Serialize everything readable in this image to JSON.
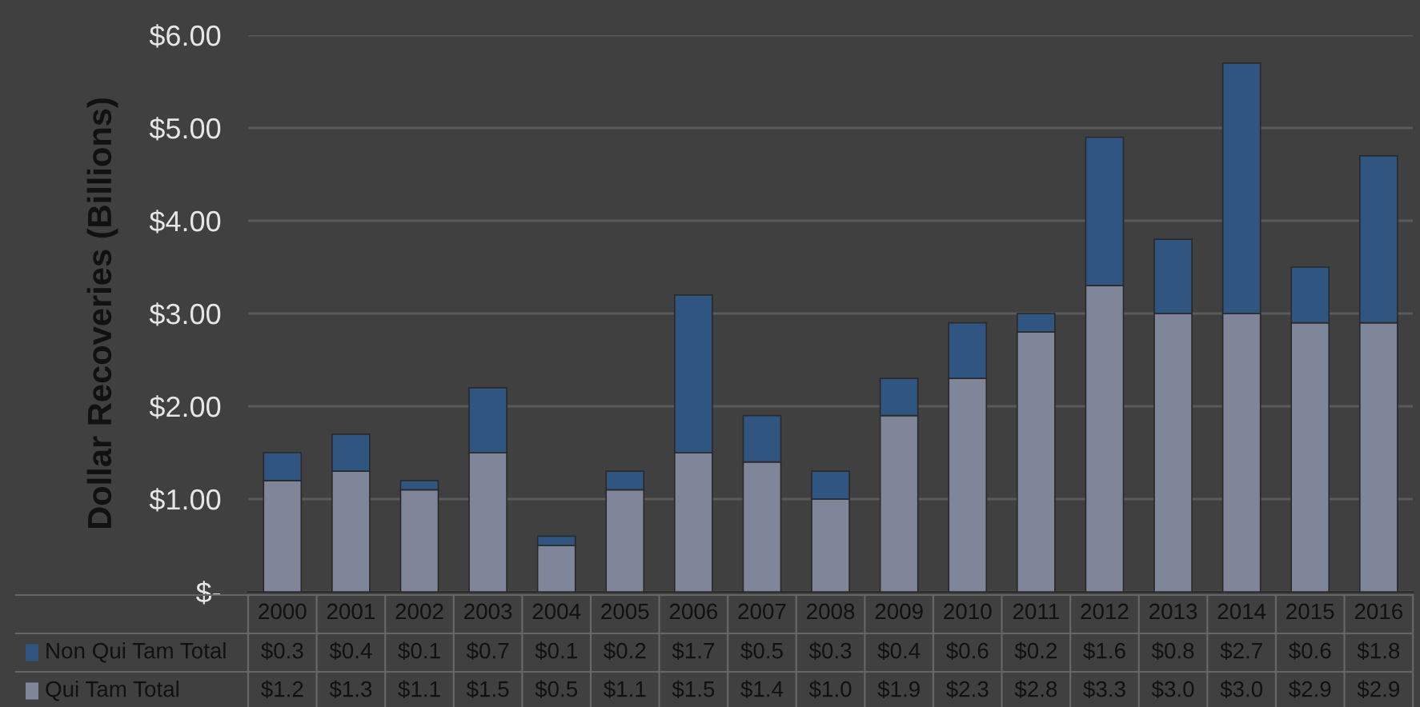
{
  "chart_data": {
    "type": "bar",
    "stacked": true,
    "ylabel": "Dollar Recoveries (Billions)",
    "categories": [
      "2000",
      "2001",
      "2002",
      "2003",
      "2004",
      "2005",
      "2006",
      "2007",
      "2008",
      "2009",
      "2010",
      "2011",
      "2012",
      "2013",
      "2014",
      "2015",
      "2016"
    ],
    "series": [
      {
        "name": "Qui Tam Total",
        "color": "#7f8699",
        "values": [
          1.2,
          1.3,
          1.1,
          1.5,
          0.5,
          1.1,
          1.5,
          1.4,
          1.0,
          1.9,
          2.3,
          2.8,
          3.3,
          3.0,
          3.0,
          2.9,
          2.9
        ],
        "value_labels": [
          "$1.2",
          "$1.3",
          "$1.1",
          "$1.5",
          "$0.5",
          "$1.1",
          "$1.5",
          "$1.4",
          "$1.0",
          "$1.9",
          "$2.3",
          "$2.8",
          "$3.3",
          "$3.0",
          "$3.0",
          "$2.9",
          "$2.9"
        ]
      },
      {
        "name": "Non Qui Tam Total",
        "color": "#2f5580",
        "values": [
          0.3,
          0.4,
          0.1,
          0.7,
          0.1,
          0.2,
          1.7,
          0.5,
          0.3,
          0.4,
          0.6,
          0.2,
          1.6,
          0.8,
          2.7,
          0.6,
          1.8
        ],
        "value_labels": [
          "$0.3",
          "$0.4",
          "$0.1",
          "$0.7",
          "$0.1",
          "$0.2",
          "$1.7",
          "$0.5",
          "$0.3",
          "$0.4",
          "$0.6",
          "$0.2",
          "$1.6",
          "$0.8",
          "$2.7",
          "$0.6",
          "$1.8"
        ]
      }
    ],
    "ylim": [
      0,
      6
    ],
    "yticks": [
      {
        "value": 0,
        "label": "$-"
      },
      {
        "value": 1,
        "label": "$1.00"
      },
      {
        "value": 2,
        "label": "$2.00"
      },
      {
        "value": 3,
        "label": "$3.00"
      },
      {
        "value": 4,
        "label": "$4.00"
      },
      {
        "value": 5,
        "label": "$5.00"
      },
      {
        "value": 6,
        "label": "$6.00"
      }
    ],
    "grid": "y",
    "legend": "bottom"
  }
}
